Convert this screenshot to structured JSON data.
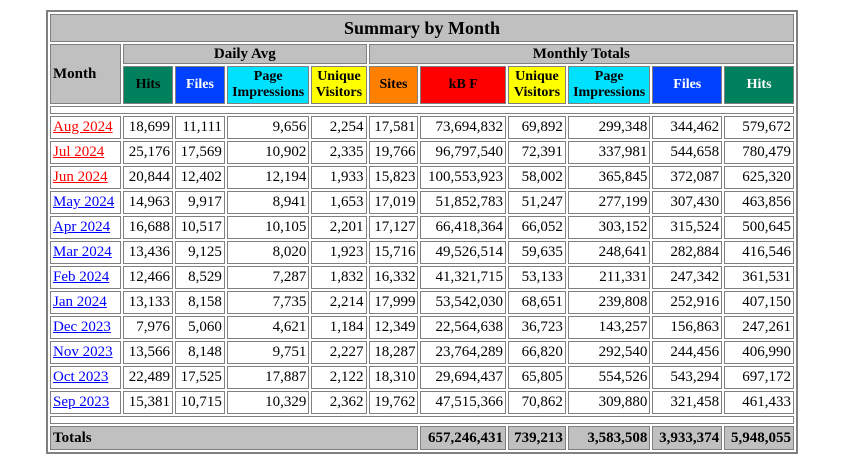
{
  "title": "Summary by Month",
  "headers": {
    "month": "Month",
    "daily_avg": "Daily Avg",
    "monthly_totals": "Monthly Totals",
    "hits": "Hits",
    "files": "Files",
    "pages_line1": "Page",
    "pages_line2": "Impressions",
    "visits_line1": "Unique",
    "visits_line2": "Visitors",
    "sites": "Sites",
    "kbytes": "kB F",
    "mt_visits_line1": "Unique",
    "mt_visits_line2": "Visitors",
    "mt_pages_line1": "Page",
    "mt_pages_line2": "Impressions",
    "mt_files": "Files",
    "mt_hits": "Hits"
  },
  "colors": {
    "hits": "#00805c",
    "files": "#0040ff",
    "pages": "#00e0ff",
    "visits": "#ffff00",
    "sites": "#ff8000",
    "kbytes": "#ff0000",
    "header_bg": "#c0c0c0",
    "link_recent": "#ff0000",
    "link_older": "#0000ff"
  },
  "rows": [
    {
      "month": "Aug 2024",
      "recent": true,
      "d_hits": "18,699",
      "d_files": "11,111",
      "d_pages": "9,656",
      "d_visits": "2,254",
      "sites": "17,581",
      "kbytes": "73,694,832",
      "visits": "69,892",
      "pages": "299,348",
      "files": "344,462",
      "hits": "579,672"
    },
    {
      "month": "Jul 2024",
      "recent": true,
      "d_hits": "25,176",
      "d_files": "17,569",
      "d_pages": "10,902",
      "d_visits": "2,335",
      "sites": "19,766",
      "kbytes": "96,797,540",
      "visits": "72,391",
      "pages": "337,981",
      "files": "544,658",
      "hits": "780,479"
    },
    {
      "month": "Jun 2024",
      "recent": true,
      "d_hits": "20,844",
      "d_files": "12,402",
      "d_pages": "12,194",
      "d_visits": "1,933",
      "sites": "15,823",
      "kbytes": "100,553,923",
      "visits": "58,002",
      "pages": "365,845",
      "files": "372,087",
      "hits": "625,320"
    },
    {
      "month": "May 2024",
      "recent": false,
      "d_hits": "14,963",
      "d_files": "9,917",
      "d_pages": "8,941",
      "d_visits": "1,653",
      "sites": "17,019",
      "kbytes": "51,852,783",
      "visits": "51,247",
      "pages": "277,199",
      "files": "307,430",
      "hits": "463,856"
    },
    {
      "month": "Apr 2024",
      "recent": false,
      "d_hits": "16,688",
      "d_files": "10,517",
      "d_pages": "10,105",
      "d_visits": "2,201",
      "sites": "17,127",
      "kbytes": "66,418,364",
      "visits": "66,052",
      "pages": "303,152",
      "files": "315,524",
      "hits": "500,645"
    },
    {
      "month": "Mar 2024",
      "recent": false,
      "d_hits": "13,436",
      "d_files": "9,125",
      "d_pages": "8,020",
      "d_visits": "1,923",
      "sites": "15,716",
      "kbytes": "49,526,514",
      "visits": "59,635",
      "pages": "248,641",
      "files": "282,884",
      "hits": "416,546"
    },
    {
      "month": "Feb 2024",
      "recent": false,
      "d_hits": "12,466",
      "d_files": "8,529",
      "d_pages": "7,287",
      "d_visits": "1,832",
      "sites": "16,332",
      "kbytes": "41,321,715",
      "visits": "53,133",
      "pages": "211,331",
      "files": "247,342",
      "hits": "361,531"
    },
    {
      "month": "Jan 2024",
      "recent": false,
      "d_hits": "13,133",
      "d_files": "8,158",
      "d_pages": "7,735",
      "d_visits": "2,214",
      "sites": "17,999",
      "kbytes": "53,542,030",
      "visits": "68,651",
      "pages": "239,808",
      "files": "252,916",
      "hits": "407,150"
    },
    {
      "month": "Dec 2023",
      "recent": false,
      "d_hits": "7,976",
      "d_files": "5,060",
      "d_pages": "4,621",
      "d_visits": "1,184",
      "sites": "12,349",
      "kbytes": "22,564,638",
      "visits": "36,723",
      "pages": "143,257",
      "files": "156,863",
      "hits": "247,261"
    },
    {
      "month": "Nov 2023",
      "recent": false,
      "d_hits": "13,566",
      "d_files": "8,148",
      "d_pages": "9,751",
      "d_visits": "2,227",
      "sites": "18,287",
      "kbytes": "23,764,289",
      "visits": "66,820",
      "pages": "292,540",
      "files": "244,456",
      "hits": "406,990"
    },
    {
      "month": "Oct 2023",
      "recent": false,
      "d_hits": "22,489",
      "d_files": "17,525",
      "d_pages": "17,887",
      "d_visits": "2,122",
      "sites": "18,310",
      "kbytes": "29,694,437",
      "visits": "65,805",
      "pages": "554,526",
      "files": "543,294",
      "hits": "697,172"
    },
    {
      "month": "Sep 2023",
      "recent": false,
      "d_hits": "15,381",
      "d_files": "10,715",
      "d_pages": "10,329",
      "d_visits": "2,362",
      "sites": "19,762",
      "kbytes": "47,515,366",
      "visits": "70,862",
      "pages": "309,880",
      "files": "321,458",
      "hits": "461,433"
    }
  ],
  "totals": {
    "label": "Totals",
    "kbytes": "657,246,431",
    "visits": "739,213",
    "pages": "3,583,508",
    "files": "3,933,374",
    "hits": "5,948,055"
  }
}
